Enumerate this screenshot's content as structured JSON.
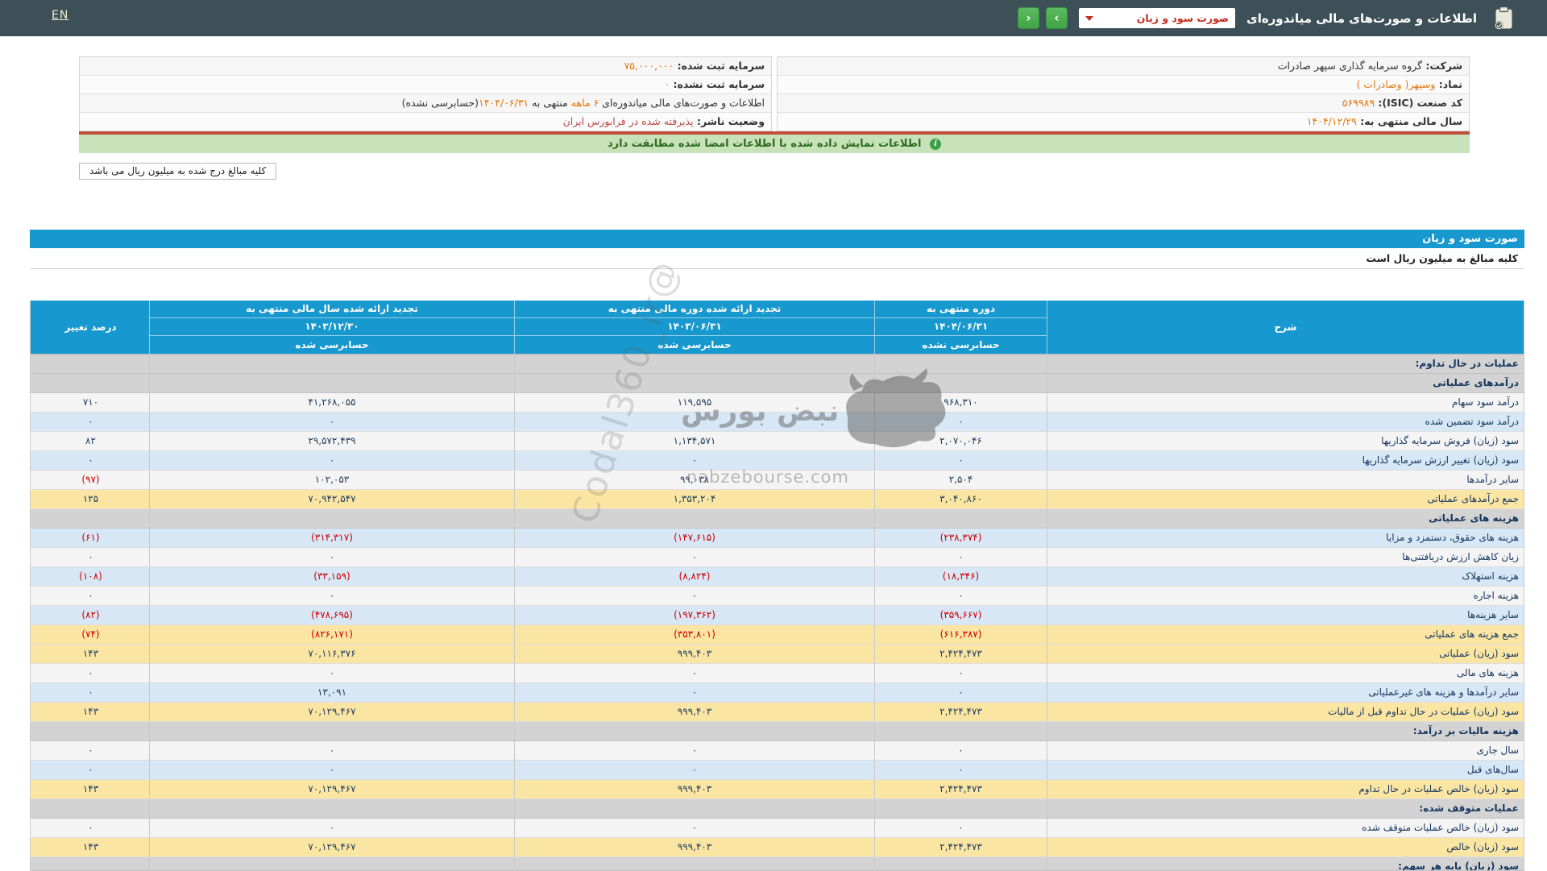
{
  "header": {
    "en_label": "EN",
    "title": "اطلاعات و صورت‌های مالی میاندوره‌ای",
    "report_select_value": "صورت سود و زیان"
  },
  "icons": {
    "chevron_left": "‹",
    "chevron_right": "›",
    "info": "i",
    "clipboard": "clipboard-check"
  },
  "colors": {
    "topbar": "#3d4f57",
    "nav_green": "#46a84b",
    "header_blue": "#1798ce",
    "row_yellow": "#fbe5a3",
    "row_blue": "#d7e7f5",
    "section_gray": "#d3d3d3",
    "value_navy": "#1f3d5c",
    "negative_red": "#cc0000",
    "info_orange": "#e2790f",
    "banner_green_bg": "#c7e1b8",
    "divider_red": "#c0503c"
  },
  "info": {
    "right_rows": [
      {
        "parts": [
          {
            "text": "شرکت:  ",
            "style": "label"
          },
          {
            "text": "گروه سرمایه گذاری سپهر صادرات",
            "style": "dark"
          }
        ]
      },
      {
        "parts": [
          {
            "text": "نماد:  ",
            "style": "label"
          },
          {
            "text": "وسپهر( وصادرات )",
            "style": "orange"
          }
        ]
      },
      {
        "parts": [
          {
            "text": "کد صنعت (ISIC):  ",
            "style": "label"
          },
          {
            "text": "۵۶۹۹۸۹",
            "style": "orange"
          }
        ]
      },
      {
        "parts": [
          {
            "text": "سال مالی منتهی به:  ",
            "style": "label"
          },
          {
            "text": "۱۴۰۴/۱۲/۲۹",
            "style": "orange"
          }
        ]
      }
    ],
    "left_rows": [
      {
        "parts": [
          {
            "text": "سرمایه ثبت شده:  ",
            "style": "label"
          },
          {
            "text": "۷۵,۰۰۰,۰۰۰",
            "style": "orange"
          }
        ]
      },
      {
        "parts": [
          {
            "text": "سرمایه ثبت نشده:  ",
            "style": "label"
          },
          {
            "text": "۰",
            "style": "orange"
          }
        ]
      },
      {
        "parts": [
          {
            "text": "اطلاعات و صورت‌های مالی میاندوره‌ای ",
            "style": "dark"
          },
          {
            "text": "۶ ماهه ",
            "style": "orange"
          },
          {
            "text": "منتهی به ",
            "style": "dark"
          },
          {
            "text": "۱۴۰۴/۰۶/۳۱",
            "style": "orange"
          },
          {
            "text": "(حسابرسی نشده)",
            "style": "dark"
          }
        ]
      },
      {
        "parts": [
          {
            "text": "وضعیت ناشر:  ",
            "style": "label"
          },
          {
            "text": "پذیرفته شده در فرابورس ایران",
            "style": "red"
          }
        ]
      }
    ]
  },
  "banner": {
    "text": "اطلاعات نمایش داده شده با اطلاعات امضا شده مطابقت دارد"
  },
  "notes": {
    "amounts_box": "کلیه مبالغ درج شده به میلیون ریال می باشد",
    "unit_note": "کلیه مبالغ به میلیون ریال است"
  },
  "statement": {
    "title": "صورت سود و زیان"
  },
  "table": {
    "headers": {
      "sharh": "شرح",
      "col1": [
        "دوره منتهی به",
        "۱۴۰۴/۰۶/۳۱",
        "حسابرسی نشده"
      ],
      "col2": [
        "تجدید ارائه شده دوره مالی منتهی به",
        "۱۴۰۳/۰۶/۳۱",
        "حسابرسی شده"
      ],
      "col3": [
        "تجدید ارائه شده سال مالی منتهی به",
        "۱۴۰۳/۱۲/۳۰",
        "حسابرسی شده"
      ],
      "pct": "درصد تغییر"
    },
    "rows": [
      {
        "type": "section",
        "label": "عملیات در حال تداوم:"
      },
      {
        "type": "section",
        "label": "درآمدهای عملیاتی"
      },
      {
        "type": "data",
        "bg": "white",
        "label": "درآمد سود سهام",
        "values": [
          "۹۶۸,۳۱۰",
          "۱۱۹,۵۹۵",
          "۴۱,۲۶۸,۰۵۵",
          "۷۱۰"
        ]
      },
      {
        "type": "data",
        "bg": "blue",
        "label": "درآمد سود تضمین شده",
        "values": [
          "۰",
          "۰",
          "۰",
          "۰"
        ]
      },
      {
        "type": "data",
        "bg": "white",
        "label": "سود (زیان) فروش سرمایه گذاریها",
        "values": [
          "۲,۰۷۰,۰۴۶",
          "۱,۱۳۴,۵۷۱",
          "۲۹,۵۷۲,۴۳۹",
          "۸۲"
        ]
      },
      {
        "type": "data",
        "bg": "blue",
        "label": "سود (زیان) تغییر ارزش سرمایه گذاریها",
        "values": [
          "۰",
          "۰",
          "۰",
          "۰"
        ]
      },
      {
        "type": "data",
        "bg": "white",
        "label": "سایر درآمدها",
        "values": [
          "۲,۵۰۴",
          "۹۹,۰۳۸",
          "۱۰۲,۰۵۳",
          "(۹۷)"
        ]
      },
      {
        "type": "data",
        "bg": "yellow",
        "label": "جمع درآمدهای عملیاتی",
        "values": [
          "۳,۰۴۰,۸۶۰",
          "۱,۳۵۳,۲۰۴",
          "۷۰,۹۴۲,۵۴۷",
          "۱۲۵"
        ]
      },
      {
        "type": "section",
        "label": "هزینه های عملیاتی"
      },
      {
        "type": "data",
        "bg": "blue",
        "label": "هزینه های حقوق، دستمزد و مزایا",
        "values": [
          "(۲۳۸,۳۷۴)",
          "(۱۴۷,۶۱۵)",
          "(۳۱۴,۳۱۷)",
          "(۶۱)"
        ]
      },
      {
        "type": "data",
        "bg": "white",
        "label": "زیان کاهش ارزش دریافتنی‌ها",
        "values": [
          "۰",
          "۰",
          "۰",
          "۰"
        ]
      },
      {
        "type": "data",
        "bg": "blue",
        "label": "هزینه استهلاک",
        "values": [
          "(۱۸,۳۴۶)",
          "(۸,۸۲۴)",
          "(۳۳,۱۵۹)",
          "(۱۰۸)"
        ]
      },
      {
        "type": "data",
        "bg": "white",
        "label": "هزینه اجاره",
        "values": [
          "۰",
          "۰",
          "۰",
          "۰"
        ]
      },
      {
        "type": "data",
        "bg": "blue",
        "label": "سایر هزینه‌ها",
        "values": [
          "(۳۵۹,۶۶۷)",
          "(۱۹۷,۳۶۲)",
          "(۴۷۸,۶۹۵)",
          "(۸۲)"
        ]
      },
      {
        "type": "data",
        "bg": "yellow",
        "label": "جمع هزینه های عملیاتی",
        "values": [
          "(۶۱۶,۳۸۷)",
          "(۳۵۳,۸۰۱)",
          "(۸۲۶,۱۷۱)",
          "(۷۴)"
        ]
      },
      {
        "type": "data",
        "bg": "yellow",
        "label": "سود (زیان) عملیاتی",
        "values": [
          "۲,۴۲۴,۴۷۳",
          "۹۹۹,۴۰۳",
          "۷۰,۱۱۶,۳۷۶",
          "۱۴۳"
        ]
      },
      {
        "type": "data",
        "bg": "white",
        "label": "هزینه های مالی",
        "values": [
          "۰",
          "۰",
          "۰",
          "۰"
        ]
      },
      {
        "type": "data",
        "bg": "blue",
        "label": "سایر درآمدها و هزینه های غیرعملیاتی",
        "values": [
          "۰",
          "۰",
          "۱۳,۰۹۱",
          "۰"
        ]
      },
      {
        "type": "data",
        "bg": "yellow",
        "label": "سود (زیان) عملیات در حال تداوم قبل از مالیات",
        "values": [
          "۲,۴۲۴,۴۷۳",
          "۹۹۹,۴۰۳",
          "۷۰,۱۲۹,۴۶۷",
          "۱۴۳"
        ]
      },
      {
        "type": "section",
        "label": "هزینه مالیات بر درآمد:"
      },
      {
        "type": "data",
        "bg": "white",
        "label": "سال جاری",
        "values": [
          "۰",
          "۰",
          "۰",
          "۰"
        ]
      },
      {
        "type": "data",
        "bg": "blue",
        "label": "سال‌های قبل",
        "values": [
          "۰",
          "۰",
          "۰",
          "۰"
        ]
      },
      {
        "type": "data",
        "bg": "yellow",
        "label": "سود (زیان) خالص عملیات در حال تداوم",
        "values": [
          "۲,۴۲۴,۴۷۳",
          "۹۹۹,۴۰۳",
          "۷۰,۱۲۹,۴۶۷",
          "۱۴۳"
        ]
      },
      {
        "type": "section",
        "label": "عملیات متوقف شده:"
      },
      {
        "type": "data",
        "bg": "white",
        "label": "سود (زیان) خالص عملیات متوقف شده",
        "values": [
          "۰",
          "۰",
          "۰",
          "۰"
        ]
      },
      {
        "type": "data",
        "bg": "yellow",
        "label": "سود (زیان) خالص",
        "values": [
          "۲,۴۲۴,۴۷۳",
          "۹۹۹,۴۰۳",
          "۷۰,۱۲۹,۴۶۷",
          "۱۴۳"
        ]
      },
      {
        "type": "section",
        "label": "سود (زیان) پایه هر سهم:",
        "partial": true
      }
    ]
  },
  "watermark": {
    "brand": "نبض بورس",
    "site": "nabzebourse.com",
    "handle": "@Codal360_ir"
  }
}
